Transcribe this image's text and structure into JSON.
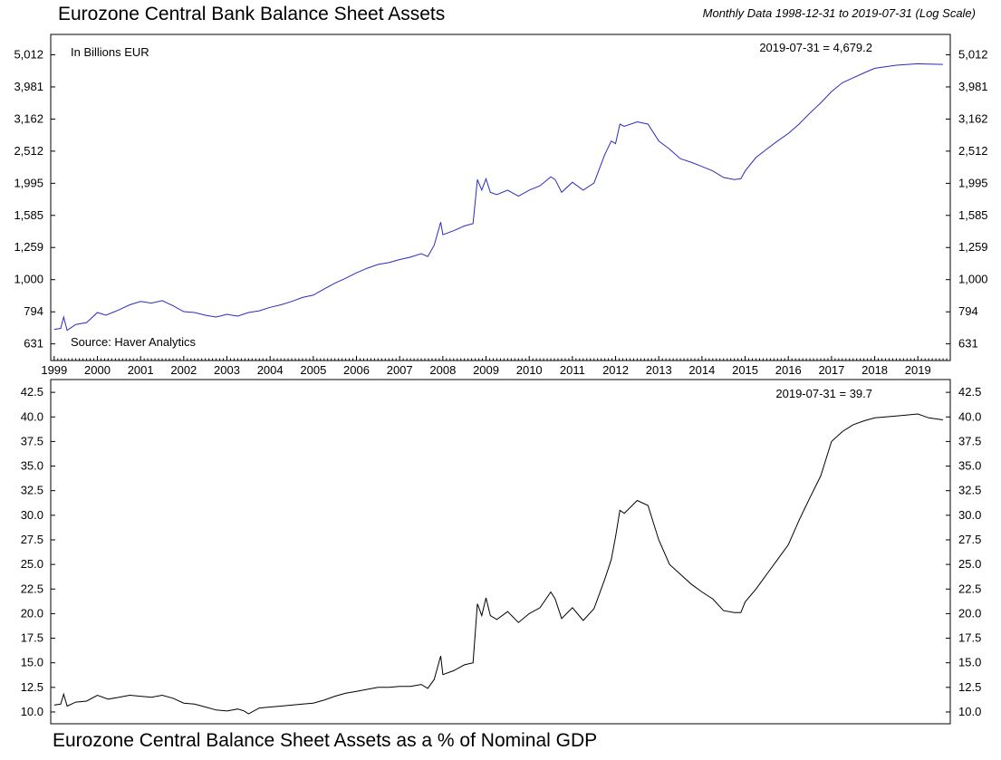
{
  "header": {
    "title": "Eurozone Central Bank Balance Sheet Assets",
    "subtitle": "Monthly Data 1998-12-31 to 2019-07-31 (Log Scale)"
  },
  "footer": {
    "title": "Eurozone Central Balance Sheet Assets as a % of Nominal GDP"
  },
  "colors": {
    "top_line": "#2b2bbf",
    "bottom_line": "#000000",
    "frame": "#000000"
  },
  "chart_data": [
    {
      "type": "line",
      "title": "Eurozone Central Bank Balance Sheet Assets",
      "subtitle": "Monthly Data 1998-12-31 to 2019-07-31 (Log Scale)",
      "unit_label": "In Billions EUR",
      "source": "Source: Haver Analytics",
      "end_label": "2019-07-31 = 4,679.2",
      "scale": "log",
      "ylim": [
        560,
        5800
      ],
      "xlim": [
        1998.92,
        2019.75
      ],
      "grid": false,
      "y_ticks": [
        631,
        794,
        1000,
        1259,
        1585,
        1995,
        2512,
        3162,
        3981,
        5012
      ],
      "y_tick_labels": [
        "631",
        "794",
        "1,000",
        "1,259",
        "1,585",
        "1,995",
        "2,512",
        "3,162",
        "3,981",
        "5,012"
      ],
      "x_tick_labels": [
        "1999",
        "2000",
        "2001",
        "2002",
        "2003",
        "2004",
        "2005",
        "2006",
        "2007",
        "2008",
        "2009",
        "2010",
        "2011",
        "2012",
        "2013",
        "2014",
        "2015",
        "2016",
        "2017",
        "2018",
        "2019"
      ],
      "series": [
        {
          "x": [
            1999.0,
            1999.15,
            1999.22,
            1999.3,
            1999.5,
            1999.75,
            2000.0,
            2000.2,
            2000.5,
            2000.75,
            2001.0,
            2001.25,
            2001.5,
            2001.75,
            2002.0,
            2002.25,
            2002.5,
            2002.75,
            2003.0,
            2003.25,
            2003.5,
            2003.75,
            2004.0,
            2004.25,
            2004.5,
            2004.75,
            2005.0,
            2005.25,
            2005.5,
            2005.75,
            2006.0,
            2006.25,
            2006.5,
            2006.75,
            2007.0,
            2007.25,
            2007.5,
            2007.65,
            2007.8,
            2007.95,
            2008.0,
            2008.25,
            2008.5,
            2008.7,
            2008.8,
            2008.9,
            2009.0,
            2009.1,
            2009.25,
            2009.5,
            2009.75,
            2010.0,
            2010.25,
            2010.5,
            2010.6,
            2010.75,
            2011.0,
            2011.25,
            2011.5,
            2011.75,
            2011.9,
            2012.0,
            2012.1,
            2012.2,
            2012.5,
            2012.75,
            2013.0,
            2013.25,
            2013.5,
            2013.75,
            2014.0,
            2014.25,
            2014.5,
            2014.75,
            2014.9,
            2015.0,
            2015.25,
            2015.5,
            2015.75,
            2016.0,
            2016.25,
            2016.5,
            2016.75,
            2017.0,
            2017.25,
            2017.5,
            2017.75,
            2018.0,
            2018.5,
            2019.0,
            2019.25,
            2019.58
          ],
          "values": [
            700,
            705,
            765,
            695,
            725,
            735,
            790,
            775,
            805,
            835,
            855,
            845,
            860,
            830,
            795,
            790,
            775,
            765,
            780,
            770,
            790,
            800,
            820,
            835,
            855,
            880,
            895,
            935,
            975,
            1010,
            1050,
            1085,
            1115,
            1130,
            1155,
            1175,
            1205,
            1180,
            1280,
            1510,
            1380,
            1420,
            1470,
            1495,
            2050,
            1900,
            2060,
            1870,
            1840,
            1900,
            1820,
            1900,
            1960,
            2090,
            2050,
            1870,
            2010,
            1900,
            2000,
            2450,
            2700,
            2650,
            3050,
            3000,
            3100,
            3050,
            2700,
            2550,
            2380,
            2320,
            2250,
            2180,
            2080,
            2050,
            2060,
            2180,
            2400,
            2550,
            2700,
            2850,
            3050,
            3300,
            3550,
            3850,
            4100,
            4250,
            4400,
            4550,
            4650,
            4700,
            4690,
            4679.2
          ]
        }
      ]
    },
    {
      "type": "line",
      "title": "Eurozone Central Balance Sheet Assets as a % of Nominal GDP",
      "end_label": "2019-07-31 = 39.7",
      "ylim": [
        8.8,
        43.8
      ],
      "xlim": [
        1998.92,
        2019.75
      ],
      "grid": false,
      "y_ticks": [
        10,
        12.5,
        15,
        17.5,
        20,
        22.5,
        25,
        27.5,
        30,
        32.5,
        35,
        37.5,
        40,
        42.5
      ],
      "y_tick_labels": [
        "10.0",
        "12.5",
        "15.0",
        "17.5",
        "20.0",
        "22.5",
        "25.0",
        "27.5",
        "30.0",
        "32.5",
        "35.0",
        "37.5",
        "40.0",
        "42.5"
      ],
      "series": [
        {
          "x": [
            1999.0,
            1999.15,
            1999.22,
            1999.3,
            1999.5,
            1999.75,
            2000.0,
            2000.25,
            2000.5,
            2000.75,
            2001.0,
            2001.25,
            2001.5,
            2001.75,
            2002.0,
            2002.25,
            2002.5,
            2002.75,
            2003.0,
            2003.25,
            2003.4,
            2003.5,
            2003.75,
            2004.0,
            2004.25,
            2004.5,
            2004.75,
            2005.0,
            2005.25,
            2005.5,
            2005.75,
            2006.0,
            2006.25,
            2006.5,
            2006.75,
            2007.0,
            2007.25,
            2007.5,
            2007.65,
            2007.8,
            2007.95,
            2008.0,
            2008.25,
            2008.5,
            2008.7,
            2008.8,
            2008.9,
            2009.0,
            2009.1,
            2009.25,
            2009.5,
            2009.75,
            2010.0,
            2010.25,
            2010.5,
            2010.6,
            2010.75,
            2011.0,
            2011.25,
            2011.5,
            2011.75,
            2011.9,
            2012.0,
            2012.1,
            2012.2,
            2012.5,
            2012.75,
            2013.0,
            2013.25,
            2013.5,
            2013.75,
            2014.0,
            2014.25,
            2014.5,
            2014.75,
            2014.9,
            2015.0,
            2015.25,
            2015.5,
            2015.75,
            2016.0,
            2016.25,
            2016.5,
            2016.75,
            2017.0,
            2017.25,
            2017.5,
            2017.75,
            2018.0,
            2018.5,
            2019.0,
            2019.25,
            2019.58
          ],
          "values": [
            10.7,
            10.8,
            11.8,
            10.6,
            11.0,
            11.1,
            11.7,
            11.3,
            11.5,
            11.7,
            11.6,
            11.5,
            11.7,
            11.4,
            10.9,
            10.8,
            10.5,
            10.2,
            10.1,
            10.3,
            10.1,
            9.8,
            10.4,
            10.5,
            10.6,
            10.7,
            10.8,
            10.9,
            11.2,
            11.6,
            11.9,
            12.1,
            12.3,
            12.5,
            12.5,
            12.6,
            12.6,
            12.8,
            12.4,
            13.3,
            15.7,
            13.8,
            14.2,
            14.8,
            15.0,
            21.0,
            19.8,
            21.6,
            19.8,
            19.4,
            20.2,
            19.1,
            20.0,
            20.6,
            22.2,
            21.5,
            19.5,
            20.6,
            19.3,
            20.5,
            23.5,
            25.5,
            27.8,
            30.5,
            30.2,
            31.5,
            31.0,
            27.5,
            25.0,
            24.0,
            23.0,
            22.2,
            21.5,
            20.3,
            20.1,
            20.1,
            21.2,
            22.5,
            24.0,
            25.5,
            27.0,
            29.5,
            31.8,
            34.0,
            37.5,
            38.5,
            39.2,
            39.6,
            39.9,
            40.1,
            40.3,
            39.9,
            39.7
          ]
        }
      ]
    }
  ]
}
